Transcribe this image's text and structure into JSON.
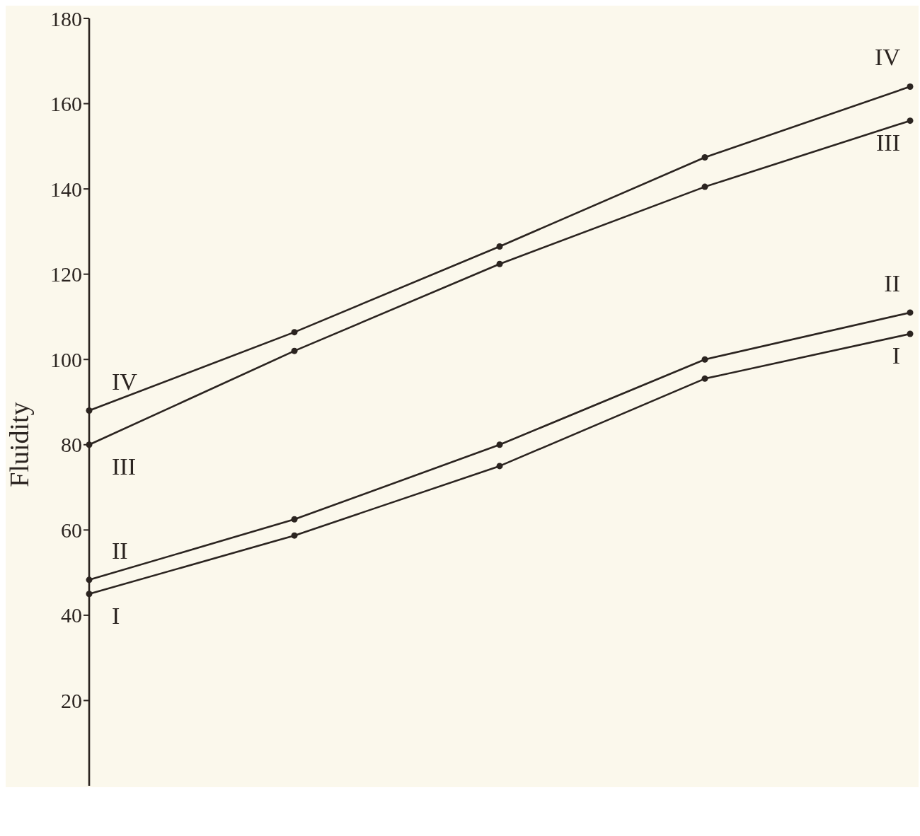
{
  "chart_data": {
    "type": "line",
    "ylabel": "Fluidity",
    "categories": [
      null,
      null,
      null,
      null,
      null
    ],
    "series": [
      {
        "name": "I",
        "color": "#2b2420",
        "values": [
          45,
          58.7,
          75,
          95.5,
          106
        ]
      },
      {
        "name": "II",
        "color": "#2b2420",
        "values": [
          48.3,
          62.5,
          80,
          100,
          111
        ]
      },
      {
        "name": "III",
        "color": "#2b2420",
        "values": [
          80,
          102,
          122.4,
          140.5,
          156
        ]
      },
      {
        "name": "IV",
        "color": "#2b2420",
        "values": [
          88,
          106.4,
          126.5,
          147.4,
          164
        ]
      }
    ],
    "ylim": [
      0,
      180
    ],
    "yticks": [
      20,
      40,
      60,
      80,
      100,
      120,
      140,
      160,
      180
    ],
    "marker": "circle",
    "line_style": "solid",
    "grid": false,
    "tick_labels": "y"
  }
}
